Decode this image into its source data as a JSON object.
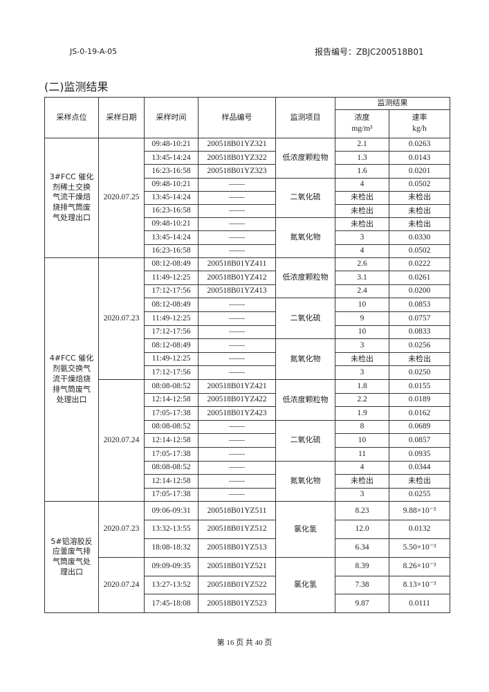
{
  "header": {
    "doc_code": "JS-0-19-A-05",
    "report_no": "报告编号：ZBJC200518B01"
  },
  "section_title": "(二)监测结果",
  "table": {
    "headers": {
      "location": "采样点位",
      "date": "采样日期",
      "time": "采样时间",
      "sample": "样品编号",
      "item": "监测项目",
      "results": "监测结果",
      "conc": "浓度",
      "conc_unit": "mg/m³",
      "rate": "速率",
      "rate_unit": "kg/h"
    },
    "sections": [
      {
        "location": "3#FCC 催化剂稀土交换气流干燥焙烧排气筒废气处理出口",
        "dates": [
          {
            "date": "2020.07.25",
            "items": [
              {
                "name": "低浓度颗粒物",
                "rows": [
                  {
                    "time": "09:48-10:21",
                    "sample": "200518B01YZ321",
                    "conc": "2.1",
                    "rate": "0.0263"
                  },
                  {
                    "time": "13:45-14:24",
                    "sample": "200518B01YZ322",
                    "conc": "1.3",
                    "rate": "0.0143"
                  },
                  {
                    "time": "16:23-16:58",
                    "sample": "200518B01YZ323",
                    "conc": "1.6",
                    "rate": "0.0201"
                  }
                ]
              },
              {
                "name": "二氧化硫",
                "rows": [
                  {
                    "time": "09:48-10:21",
                    "sample": "——",
                    "conc": "4",
                    "rate": "0.0502"
                  },
                  {
                    "time": "13:45-14:24",
                    "sample": "——",
                    "conc": "未检出",
                    "rate": "未检出"
                  },
                  {
                    "time": "16:23-16:58",
                    "sample": "——",
                    "conc": "未检出",
                    "rate": "未检出"
                  }
                ]
              },
              {
                "name": "氮氧化物",
                "rows": [
                  {
                    "time": "09:48-10:21",
                    "sample": "——",
                    "conc": "未检出",
                    "rate": "未检出"
                  },
                  {
                    "time": "13:45-14:24",
                    "sample": "——",
                    "conc": "3",
                    "rate": "0.0330"
                  },
                  {
                    "time": "16:23-16:58",
                    "sample": "——",
                    "conc": "4",
                    "rate": "0.0502"
                  }
                ]
              }
            ]
          }
        ]
      },
      {
        "location": "4#FCC 催化剂氨交换气流干燥焙烧排气筒废气处理出口",
        "dates": [
          {
            "date": "2020.07.23",
            "items": [
              {
                "name": "低浓度颗粒物",
                "rows": [
                  {
                    "time": "08:12-08:49",
                    "sample": "200518B01YZ411",
                    "conc": "2.6",
                    "rate": "0.0222"
                  },
                  {
                    "time": "11:49-12:25",
                    "sample": "200518B01YZ412",
                    "conc": "3.1",
                    "rate": "0.0261"
                  },
                  {
                    "time": "17:12-17:56",
                    "sample": "200518B01YZ413",
                    "conc": "2.4",
                    "rate": "0.0200"
                  }
                ]
              },
              {
                "name": "二氧化硫",
                "rows": [
                  {
                    "time": "08:12-08:49",
                    "sample": "——",
                    "conc": "10",
                    "rate": "0.0853"
                  },
                  {
                    "time": "11:49-12:25",
                    "sample": "——",
                    "conc": "9",
                    "rate": "0.0757"
                  },
                  {
                    "time": "17:12-17:56",
                    "sample": "——",
                    "conc": "10",
                    "rate": "0.0833"
                  }
                ]
              },
              {
                "name": "氮氧化物",
                "rows": [
                  {
                    "time": "08:12-08:49",
                    "sample": "——",
                    "conc": "3",
                    "rate": "0.0256"
                  },
                  {
                    "time": "11:49-12:25",
                    "sample": "——",
                    "conc": "未检出",
                    "rate": "未检出"
                  },
                  {
                    "time": "17:12-17:56",
                    "sample": "——",
                    "conc": "3",
                    "rate": "0.0250"
                  }
                ]
              }
            ]
          },
          {
            "date": "2020.07.24",
            "items": [
              {
                "name": "低浓度颗粒物",
                "rows": [
                  {
                    "time": "08:08-08:52",
                    "sample": "200518B01YZ421",
                    "conc": "1.8",
                    "rate": "0.0155"
                  },
                  {
                    "time": "12:14-12:58",
                    "sample": "200518B01YZ422",
                    "conc": "2.2",
                    "rate": "0.0189"
                  },
                  {
                    "time": "17:05-17:38",
                    "sample": "200518B01YZ423",
                    "conc": "1.9",
                    "rate": "0.0162"
                  }
                ]
              },
              {
                "name": "二氧化硫",
                "rows": [
                  {
                    "time": "08:08-08:52",
                    "sample": "——",
                    "conc": "8",
                    "rate": "0.0689"
                  },
                  {
                    "time": "12:14-12:58",
                    "sample": "——",
                    "conc": "10",
                    "rate": "0.0857"
                  },
                  {
                    "time": "17:05-17:38",
                    "sample": "——",
                    "conc": "11",
                    "rate": "0.0935"
                  }
                ]
              },
              {
                "name": "氮氧化物",
                "rows": [
                  {
                    "time": "08:08-08:52",
                    "sample": "——",
                    "conc": "4",
                    "rate": "0.0344"
                  },
                  {
                    "time": "12:14-12:58",
                    "sample": "——",
                    "conc": "未检出",
                    "rate": "未检出"
                  },
                  {
                    "time": "17:05-17:38",
                    "sample": "——",
                    "conc": "3",
                    "rate": "0.0255"
                  }
                ]
              }
            ]
          }
        ]
      },
      {
        "location": "5#铝溶胶反应釜废气排气筒废气处理出口",
        "dates": [
          {
            "date": "2020.07.23",
            "items": [
              {
                "name": "氯化氢",
                "rows": [
                  {
                    "time": "09:06-09:31",
                    "sample": "200518B01YZ511",
                    "conc": "8.23",
                    "rate": "9.88×10⁻³"
                  },
                  {
                    "time": "13:32-13:55",
                    "sample": "200518B01YZ512",
                    "conc": "12.0",
                    "rate": "0.0132"
                  },
                  {
                    "time": "18:08-18:32",
                    "sample": "200518B01YZ513",
                    "conc": "6.34",
                    "rate": "5.50×10⁻³"
                  }
                ]
              }
            ]
          },
          {
            "date": "2020.07.24",
            "items": [
              {
                "name": "氯化氢",
                "rows": [
                  {
                    "time": "09:09-09:35",
                    "sample": "200518B01YZ521",
                    "conc": "8.39",
                    "rate": "8.26×10⁻³"
                  },
                  {
                    "time": "13:27-13:52",
                    "sample": "200518B01YZ522",
                    "conc": "7.38",
                    "rate": "8.13×10⁻³"
                  },
                  {
                    "time": "17:45-18:08",
                    "sample": "200518B01YZ523",
                    "conc": "9.87",
                    "rate": "0.0111"
                  }
                ]
              }
            ]
          }
        ]
      }
    ]
  },
  "footer": "第 16 页 共 40 页"
}
